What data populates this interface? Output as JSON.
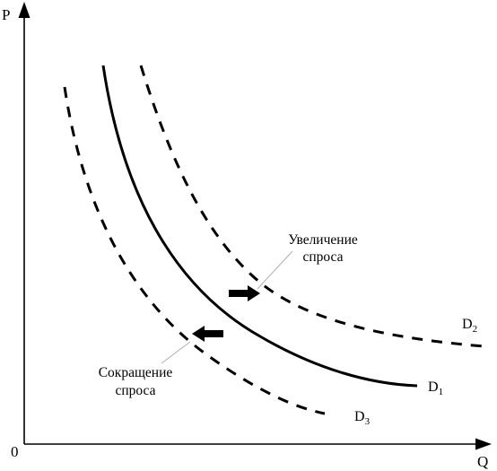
{
  "axes": {
    "y_label": "P",
    "x_label": "Q",
    "origin_label": "0"
  },
  "curves": {
    "d1": {
      "letter": "D",
      "index": "1",
      "style": "solid"
    },
    "d2": {
      "letter": "D",
      "index": "2",
      "style": "dashed"
    },
    "d3": {
      "letter": "D",
      "index": "3",
      "style": "dashed"
    }
  },
  "annotations": {
    "increase": {
      "line1": "Увеличение",
      "line2": "спроса"
    },
    "decrease": {
      "line1": "Сокращение",
      "line2": "спроса"
    }
  },
  "colors": {
    "ink": "#000000",
    "leader": "#b0b0b0",
    "background": "#ffffff"
  }
}
